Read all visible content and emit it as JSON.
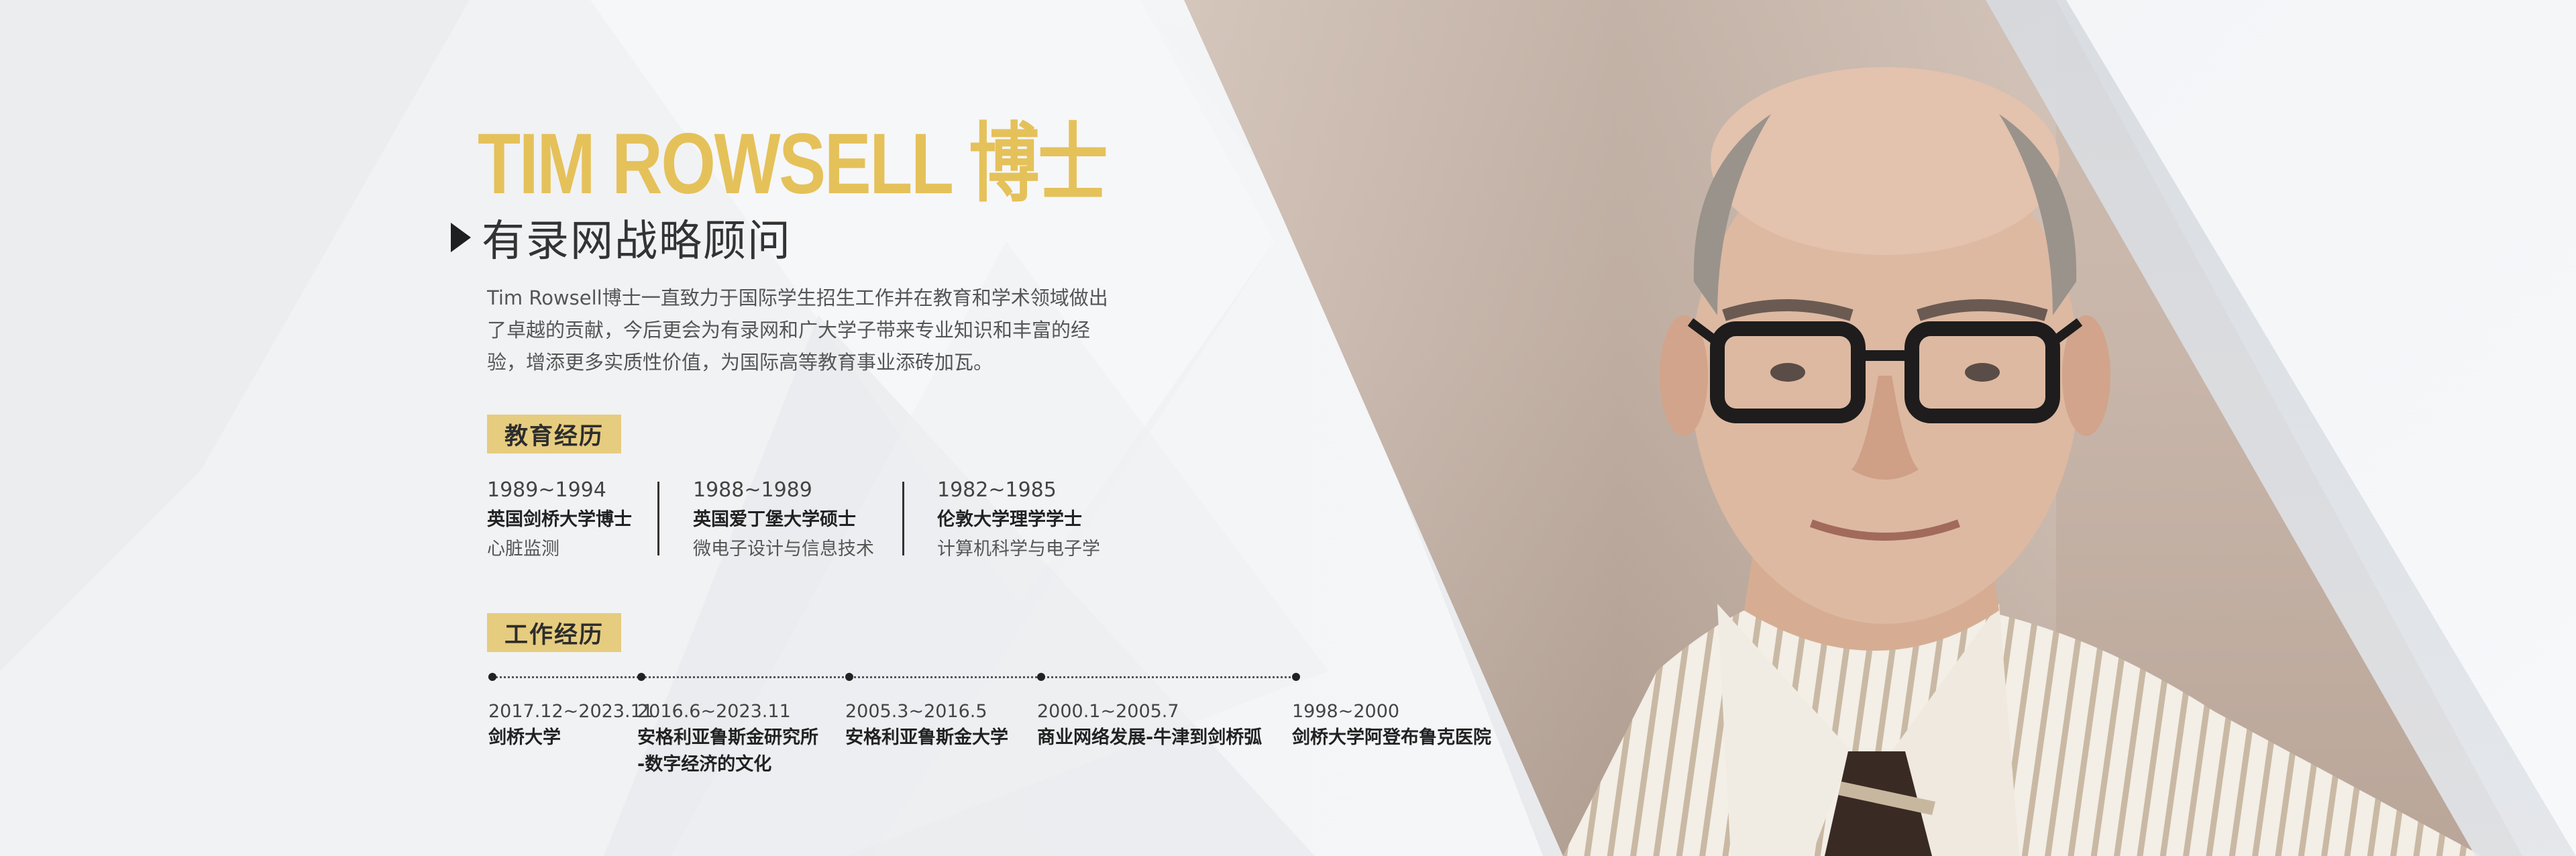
{
  "name_title": "TIM ROWSELL 博士",
  "role": "有录网战略顾问",
  "intro": "Tim Rowsell博士一直致力于国际学生招生工作并在教育和学术领域做出了卓越的贡献，今后更会为有录网和广大学子带来专业知识和丰富的经验，增添更多实质性价值，为国际高等教育事业添砖加瓦。",
  "education": {
    "label": "教育经历",
    "items": [
      {
        "years": "1989~1994",
        "degree": "英国剑桥大学博士",
        "major": "心脏监测"
      },
      {
        "years": "1988~1989",
        "degree": "英国爱丁堡大学硕士",
        "major": "微电子设计与信息技术"
      },
      {
        "years": "1982~1985",
        "degree": "伦敦大学理学学士",
        "major": "计算机科学与电子学"
      }
    ]
  },
  "work": {
    "label": "工作经历",
    "items": [
      {
        "years": "2017.12~2023.11",
        "org": "剑桥大学",
        "org2": ""
      },
      {
        "years": "2016.6~2023.11",
        "org": "安格利亚鲁斯金研究所",
        "org2": "-数字经济的文化"
      },
      {
        "years": "2005.3~2016.5",
        "org": "安格利亚鲁斯金大学",
        "org2": ""
      },
      {
        "years": "2000.1~2005.7",
        "org": "商业网络发展-牛津到剑桥弧",
        "org2": ""
      },
      {
        "years": "1998~2000",
        "org": "剑桥大学阿登布鲁克医院",
        "org2": ""
      }
    ]
  },
  "colors": {
    "accent": "#e5c15a",
    "tag_bg": "#e6cc7f"
  }
}
